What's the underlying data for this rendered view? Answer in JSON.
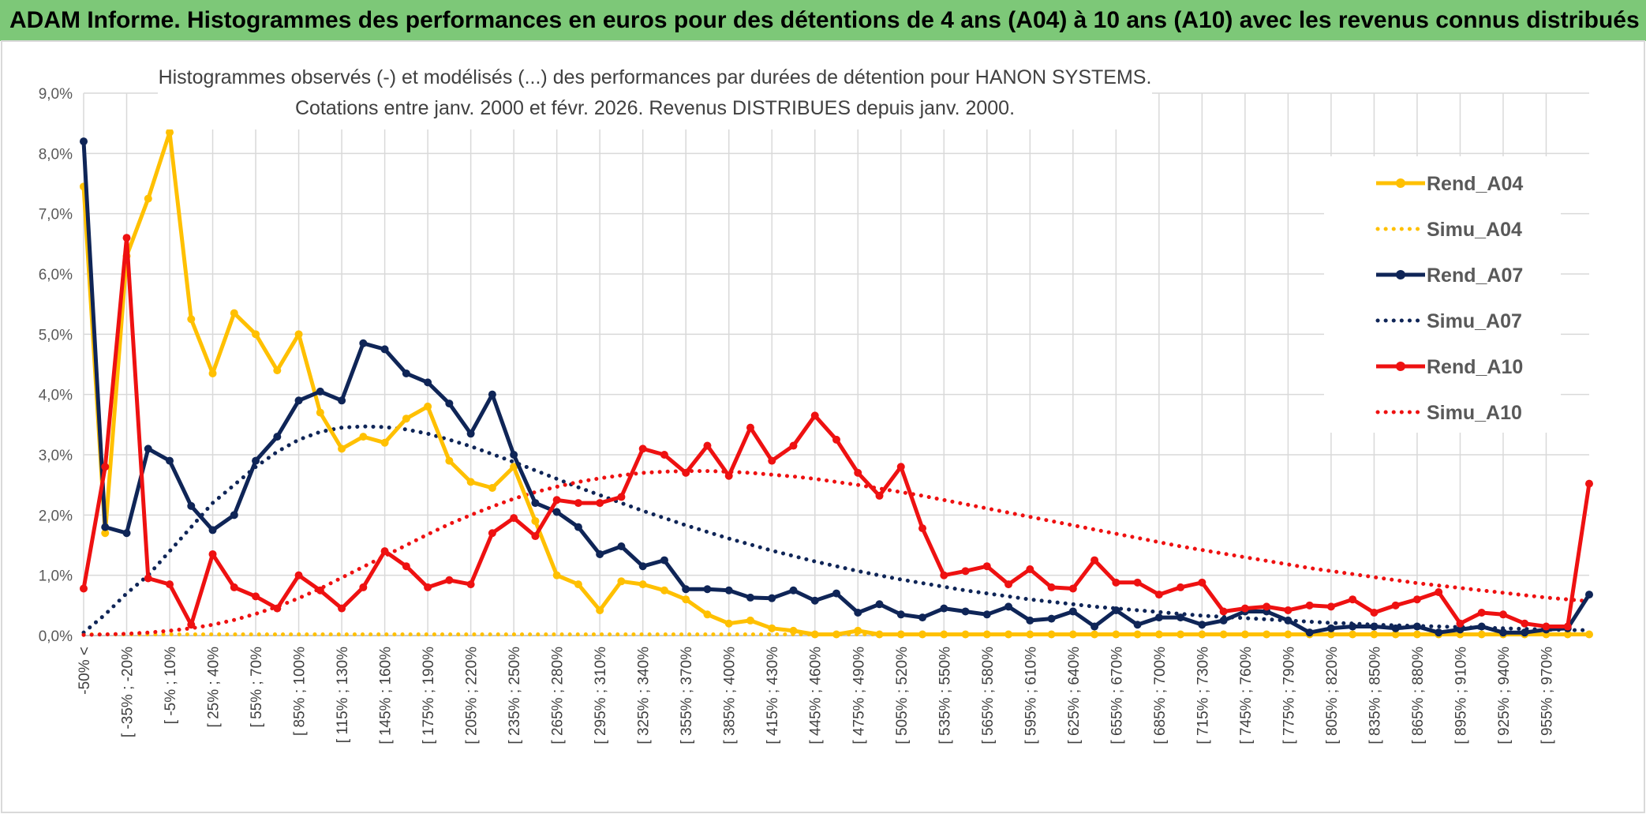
{
  "header": {
    "title": "ADAM Informe. Histogrammes des performances en euros pour des détentions de 4 ans (A04) à 10 ans (A10) avec les revenus connus distribués"
  },
  "colors": {
    "header_bg": "#7dc878",
    "A04": "#ffc000",
    "A07": "#0f2557",
    "A10": "#ee1111"
  },
  "chart_data": {
    "type": "line",
    "title_lines": [
      "Histogrammes observés (-) et modélisés (...) des performances par durées de détention pour HANON SYSTEMS.",
      "Cotations entre janv. 2000 et févr. 2026.  Revenus DISTRIBUES depuis janv. 2000."
    ],
    "ylim": [
      0,
      9
    ],
    "yticks": [
      "0,0%",
      "1,0%",
      "2,0%",
      "3,0%",
      "4,0%",
      "5,0%",
      "6,0%",
      "7,0%",
      "8,0%",
      "9,0%"
    ],
    "n_points": 71,
    "xtick_labels": [
      "-50% <",
      "[ -35% ; -20%",
      "[ -5% ; 10%",
      "[ 25% ; 40%",
      "[ 55% ; 70%",
      "[ 85% ; 100%",
      "[ 115% ; 130%",
      "[ 145% ; 160%",
      "[ 175% ; 190%",
      "[ 205% ; 220%",
      "[ 235% ; 250%",
      "[ 265% ; 280%",
      "[ 295% ; 310%",
      "[ 325% ; 340%",
      "[ 355% ; 370%",
      "[ 385% ; 400%",
      "[ 415% ; 430%",
      "[ 445% ; 460%",
      "[ 475% ; 490%",
      "[ 505% ; 520%",
      "[ 535% ; 550%",
      "[ 565% ; 580%",
      "[ 595% ; 610%",
      "[ 625% ; 640%",
      "[ 655% ; 670%",
      "[ 685% ; 700%",
      "[ 715% ; 730%",
      "[ 745% ; 760%",
      "[ 775% ; 790%",
      "[ 805% ; 820%",
      "[ 835% ; 850%",
      "[ 865% ; 880%",
      "[ 895% ; 910%",
      "[ 925% ; 940%",
      "[ 955% ; 970%"
    ],
    "series": [
      {
        "name": "Rend_A04",
        "style": "solid",
        "color": "#ffc000",
        "values": [
          7.45,
          1.7,
          6.3,
          7.25,
          8.35,
          5.25,
          4.35,
          5.35,
          5.0,
          4.4,
          5.0,
          3.7,
          3.1,
          3.3,
          3.2,
          3.6,
          3.8,
          2.9,
          2.55,
          2.45,
          2.8,
          1.9,
          1.0,
          0.85,
          0.42,
          0.9,
          0.85,
          0.75,
          0.6,
          0.35,
          0.2,
          0.25,
          0.12,
          0.08,
          0.02,
          0.02,
          0.08,
          0.02,
          0.02,
          0.02,
          0.02,
          0.02,
          0.02,
          0.02,
          0.02,
          0.02,
          0.02,
          0.02,
          0.02,
          0.02,
          0.02,
          0.02,
          0.02,
          0.02,
          0.02,
          0.02,
          0.02,
          0.02,
          0.02,
          0.02,
          0.02,
          0.02,
          0.02,
          0.02,
          0.02,
          0.02,
          0.02,
          0.02,
          0.02,
          0.02,
          0.02
        ]
      },
      {
        "name": "Simu_A04",
        "style": "dotted",
        "color": "#ffc000",
        "values": [
          0.02,
          0.02,
          0.02,
          0.02,
          0.02,
          0.02,
          0.02,
          0.02,
          0.02,
          0.02,
          0.02,
          0.02,
          0.02,
          0.02,
          0.02,
          0.02,
          0.02,
          0.02,
          0.02,
          0.02,
          0.02,
          0.02,
          0.02,
          0.02,
          0.02,
          0.02,
          0.02,
          0.02,
          0.02,
          0.02,
          0.02,
          0.02,
          0.02,
          0.02,
          0.02,
          0.02,
          0.02,
          0.02,
          0.02,
          0.02,
          0.02,
          0.02,
          0.02,
          0.02,
          0.02,
          0.02,
          0.02,
          0.02,
          0.02,
          0.02,
          0.02,
          0.02,
          0.02,
          0.02,
          0.02,
          0.02,
          0.02,
          0.02,
          0.02,
          0.02,
          0.02,
          0.02,
          0.02,
          0.02,
          0.02,
          0.02,
          0.02,
          0.02,
          0.02,
          0.02,
          0.02
        ]
      },
      {
        "name": "Rend_A07",
        "style": "solid",
        "color": "#0f2557",
        "values": [
          8.2,
          1.8,
          1.7,
          3.1,
          2.9,
          2.15,
          1.75,
          2.0,
          2.9,
          3.3,
          3.9,
          4.05,
          3.9,
          4.85,
          4.75,
          4.35,
          4.2,
          3.85,
          3.35,
          4.0,
          3.0,
          2.2,
          2.05,
          1.8,
          1.35,
          1.48,
          1.15,
          1.25,
          0.77,
          0.77,
          0.75,
          0.63,
          0.62,
          0.75,
          0.58,
          0.7,
          0.38,
          0.52,
          0.35,
          0.3,
          0.45,
          0.4,
          0.35,
          0.48,
          0.25,
          0.28,
          0.4,
          0.15,
          0.42,
          0.18,
          0.3,
          0.3,
          0.18,
          0.25,
          0.4,
          0.4,
          0.25,
          0.05,
          0.12,
          0.15,
          0.15,
          0.12,
          0.15,
          0.05,
          0.1,
          0.15,
          0.05,
          0.05,
          0.1,
          0.12,
          0.68
        ]
      },
      {
        "name": "Simu_A07",
        "style": "dotted",
        "color": "#0f2557",
        "values": [
          0.05,
          0.35,
          0.7,
          1.0,
          1.4,
          1.8,
          2.2,
          2.5,
          2.8,
          3.05,
          3.25,
          3.38,
          3.45,
          3.47,
          3.46,
          3.42,
          3.35,
          3.25,
          3.14,
          3.01,
          2.88,
          2.74,
          2.6,
          2.46,
          2.33,
          2.2,
          2.07,
          1.95,
          1.83,
          1.72,
          1.61,
          1.51,
          1.41,
          1.32,
          1.23,
          1.15,
          1.07,
          1.0,
          0.93,
          0.87,
          0.81,
          0.75,
          0.7,
          0.65,
          0.6,
          0.56,
          0.52,
          0.48,
          0.45,
          0.42,
          0.39,
          0.36,
          0.33,
          0.31,
          0.29,
          0.27,
          0.25,
          0.23,
          0.21,
          0.2,
          0.18,
          0.17,
          0.16,
          0.15,
          0.14,
          0.13,
          0.12,
          0.11,
          0.1,
          0.09,
          0.09
        ]
      },
      {
        "name": "Rend_A10",
        "style": "solid",
        "color": "#ee1111",
        "values": [
          0.78,
          2.8,
          6.6,
          0.95,
          0.85,
          0.18,
          1.35,
          0.8,
          0.65,
          0.45,
          1.0,
          0.75,
          0.45,
          0.8,
          1.4,
          1.15,
          0.8,
          0.92,
          0.85,
          1.7,
          1.95,
          1.65,
          2.25,
          2.2,
          2.2,
          2.3,
          3.1,
          3.0,
          2.7,
          3.15,
          2.65,
          3.45,
          2.9,
          3.15,
          3.65,
          3.25,
          2.7,
          2.32,
          2.8,
          1.78,
          1.0,
          1.07,
          1.15,
          0.85,
          1.1,
          0.8,
          0.78,
          1.25,
          0.88,
          0.88,
          0.68,
          0.8,
          0.88,
          0.4,
          0.45,
          0.48,
          0.42,
          0.5,
          0.48,
          0.6,
          0.38,
          0.5,
          0.6,
          0.72,
          0.2,
          0.38,
          0.35,
          0.2,
          0.15,
          0.15,
          2.52
        ]
      },
      {
        "name": "Simu_A10",
        "style": "dotted",
        "color": "#ee1111",
        "values": [
          0.01,
          0.02,
          0.03,
          0.05,
          0.08,
          0.12,
          0.18,
          0.26,
          0.36,
          0.48,
          0.62,
          0.78,
          0.96,
          1.14,
          1.32,
          1.5,
          1.68,
          1.85,
          2.0,
          2.14,
          2.27,
          2.38,
          2.47,
          2.55,
          2.61,
          2.66,
          2.7,
          2.72,
          2.73,
          2.73,
          2.72,
          2.7,
          2.67,
          2.64,
          2.6,
          2.55,
          2.5,
          2.44,
          2.38,
          2.32,
          2.25,
          2.18,
          2.11,
          2.04,
          1.97,
          1.9,
          1.83,
          1.76,
          1.69,
          1.62,
          1.55,
          1.48,
          1.42,
          1.36,
          1.3,
          1.24,
          1.18,
          1.12,
          1.07,
          1.02,
          0.97,
          0.92,
          0.87,
          0.83,
          0.79,
          0.75,
          0.71,
          0.67,
          0.63,
          0.6,
          0.57
        ]
      }
    ]
  }
}
